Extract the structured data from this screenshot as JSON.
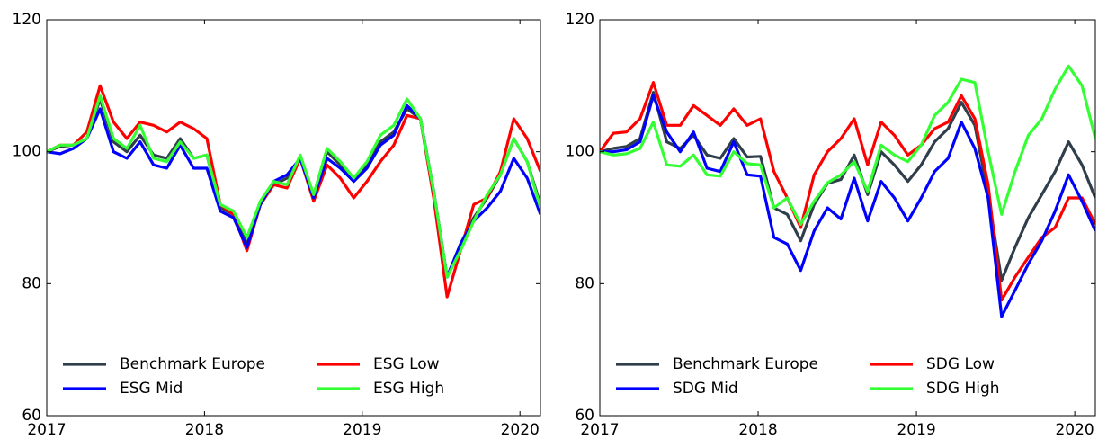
{
  "chart_data": [
    {
      "type": "line",
      "x": [
        2017,
        2017.085,
        2017.169,
        2017.254,
        2017.338,
        2017.423,
        2017.508,
        2017.592,
        2017.677,
        2017.761,
        2017.846,
        2017.931,
        2018.015,
        2018.1,
        2018.184,
        2018.269,
        2018.354,
        2018.438,
        2018.523,
        2018.607,
        2018.692,
        2018.777,
        2018.861,
        2018.946,
        2019.03,
        2019.115,
        2019.2,
        2019.284,
        2019.369,
        2019.453,
        2019.538,
        2019.623,
        2019.707,
        2019.792,
        2019.876,
        2019.961,
        2020.046,
        2020.13
      ],
      "xlim": [
        2017,
        2020.13
      ],
      "xticks": [
        2017,
        2018,
        2019,
        2020
      ],
      "ylim": [
        60,
        120
      ],
      "yticks": [
        60,
        80,
        100,
        120
      ],
      "legend": "lower left",
      "series": [
        {
          "name": "Benchmark Europe",
          "color": "#2f3e4a",
          "values": [
            100,
            100.8,
            101,
            102,
            108,
            101.5,
            100,
            102.5,
            99.5,
            99,
            102,
            99,
            99.5,
            91.5,
            90.5,
            86,
            92,
            95,
            96,
            99,
            93,
            100,
            98,
            95.5,
            98,
            101.5,
            103,
            106.5,
            105,
            94,
            81,
            86,
            90,
            93,
            96.5,
            102,
            98.5,
            92
          ]
        },
        {
          "name": "ESG Low",
          "color": "#ff0000",
          "values": [
            100,
            101,
            101,
            103,
            110,
            104.5,
            102,
            104.5,
            104,
            103,
            104.5,
            103.5,
            102,
            92,
            90.5,
            85,
            92,
            95,
            94.5,
            99,
            92.5,
            98,
            96,
            93,
            95.5,
            98.5,
            101,
            105.5,
            105,
            93,
            78,
            85,
            92,
            93,
            97,
            105,
            102,
            97
          ]
        },
        {
          "name": "ESG Mid",
          "color": "#0000ff",
          "values": [
            100,
            99.7,
            100.5,
            102,
            106.5,
            100,
            99,
            101.5,
            98,
            97.5,
            101,
            97.5,
            97.5,
            91,
            90,
            85.5,
            92,
            95.5,
            96.5,
            99,
            93,
            99,
            97.5,
            95.5,
            97.5,
            101,
            102.5,
            107,
            105,
            94,
            81,
            86,
            89.5,
            91.5,
            94,
            99,
            96,
            90.5
          ]
        },
        {
          "name": "ESG High",
          "color": "#33ff33",
          "values": [
            100,
            101,
            101,
            102,
            108.5,
            102,
            100.5,
            104,
            99,
            98.5,
            101.5,
            99,
            99.5,
            92,
            91,
            87,
            92.5,
            95.5,
            95,
            99.5,
            93.5,
            100.5,
            98.5,
            96,
            98.5,
            102.5,
            104,
            108,
            105,
            94,
            81,
            85,
            89.5,
            93.5,
            96.5,
            102,
            98.5,
            91.5
          ]
        }
      ]
    },
    {
      "type": "line",
      "x": [
        2017,
        2017.085,
        2017.169,
        2017.254,
        2017.338,
        2017.423,
        2017.508,
        2017.592,
        2017.677,
        2017.761,
        2017.846,
        2017.931,
        2018.015,
        2018.1,
        2018.184,
        2018.269,
        2018.354,
        2018.438,
        2018.523,
        2018.607,
        2018.692,
        2018.777,
        2018.861,
        2018.946,
        2019.03,
        2019.115,
        2019.2,
        2019.284,
        2019.369,
        2019.453,
        2019.538,
        2019.623,
        2019.707,
        2019.792,
        2019.876,
        2019.961,
        2020.046,
        2020.13
      ],
      "xlim": [
        2017,
        2020.13
      ],
      "xticks": [
        2017,
        2018,
        2019,
        2020
      ],
      "ylim": [
        60,
        120
      ],
      "yticks": [
        60,
        80,
        100,
        120
      ],
      "legend": "lower left",
      "series": [
        {
          "name": "Benchmark Europe",
          "color": "#2f3e4a",
          "values": [
            100,
            100.5,
            100.8,
            102,
            109,
            101.5,
            100.5,
            102.5,
            99.5,
            99,
            102,
            99.2,
            99.3,
            91.5,
            90.5,
            86.5,
            92,
            95.2,
            95.8,
            99.5,
            93.5,
            100,
            98,
            95.5,
            98,
            101.5,
            103.5,
            107.5,
            104,
            93.5,
            80.5,
            85.5,
            90,
            93.5,
            97,
            101.5,
            98,
            93
          ]
        },
        {
          "name": "SDG Low",
          "color": "#ff0000",
          "values": [
            100,
            102.8,
            103,
            105,
            110.5,
            104,
            104,
            107,
            105.5,
            104,
            106.5,
            104,
            105,
            97,
            93,
            88.5,
            96.5,
            100,
            102,
            105,
            98,
            104.5,
            102.5,
            99.5,
            101,
            103.5,
            104.5,
            108.5,
            105,
            95,
            77.5,
            81,
            84,
            87,
            88.5,
            93,
            93,
            89
          ]
        },
        {
          "name": "SDG Mid",
          "color": "#0000ff",
          "values": [
            100,
            100,
            100.3,
            101.5,
            108.5,
            103,
            100,
            103,
            97.5,
            97,
            101.5,
            96.5,
            96.3,
            87,
            86,
            82,
            88,
            91.5,
            89.8,
            96,
            89.5,
            95.5,
            93,
            89.5,
            93,
            97,
            99,
            104.5,
            100.5,
            93,
            75,
            79,
            83,
            86.5,
            91,
            96.5,
            92.5,
            88
          ]
        },
        {
          "name": "SDG High",
          "color": "#33ff33",
          "values": [
            100,
            99.5,
            99.7,
            100.5,
            104.5,
            98,
            97.8,
            99.5,
            96.5,
            96.3,
            100,
            98.2,
            98,
            91.5,
            93,
            89,
            92.5,
            95.3,
            96.5,
            98.5,
            94,
            101,
            99.5,
            98.5,
            101,
            105.5,
            107.5,
            111,
            110.5,
            100,
            90.5,
            97,
            102.5,
            105,
            109.5,
            113,
            110,
            102
          ]
        }
      ]
    }
  ]
}
